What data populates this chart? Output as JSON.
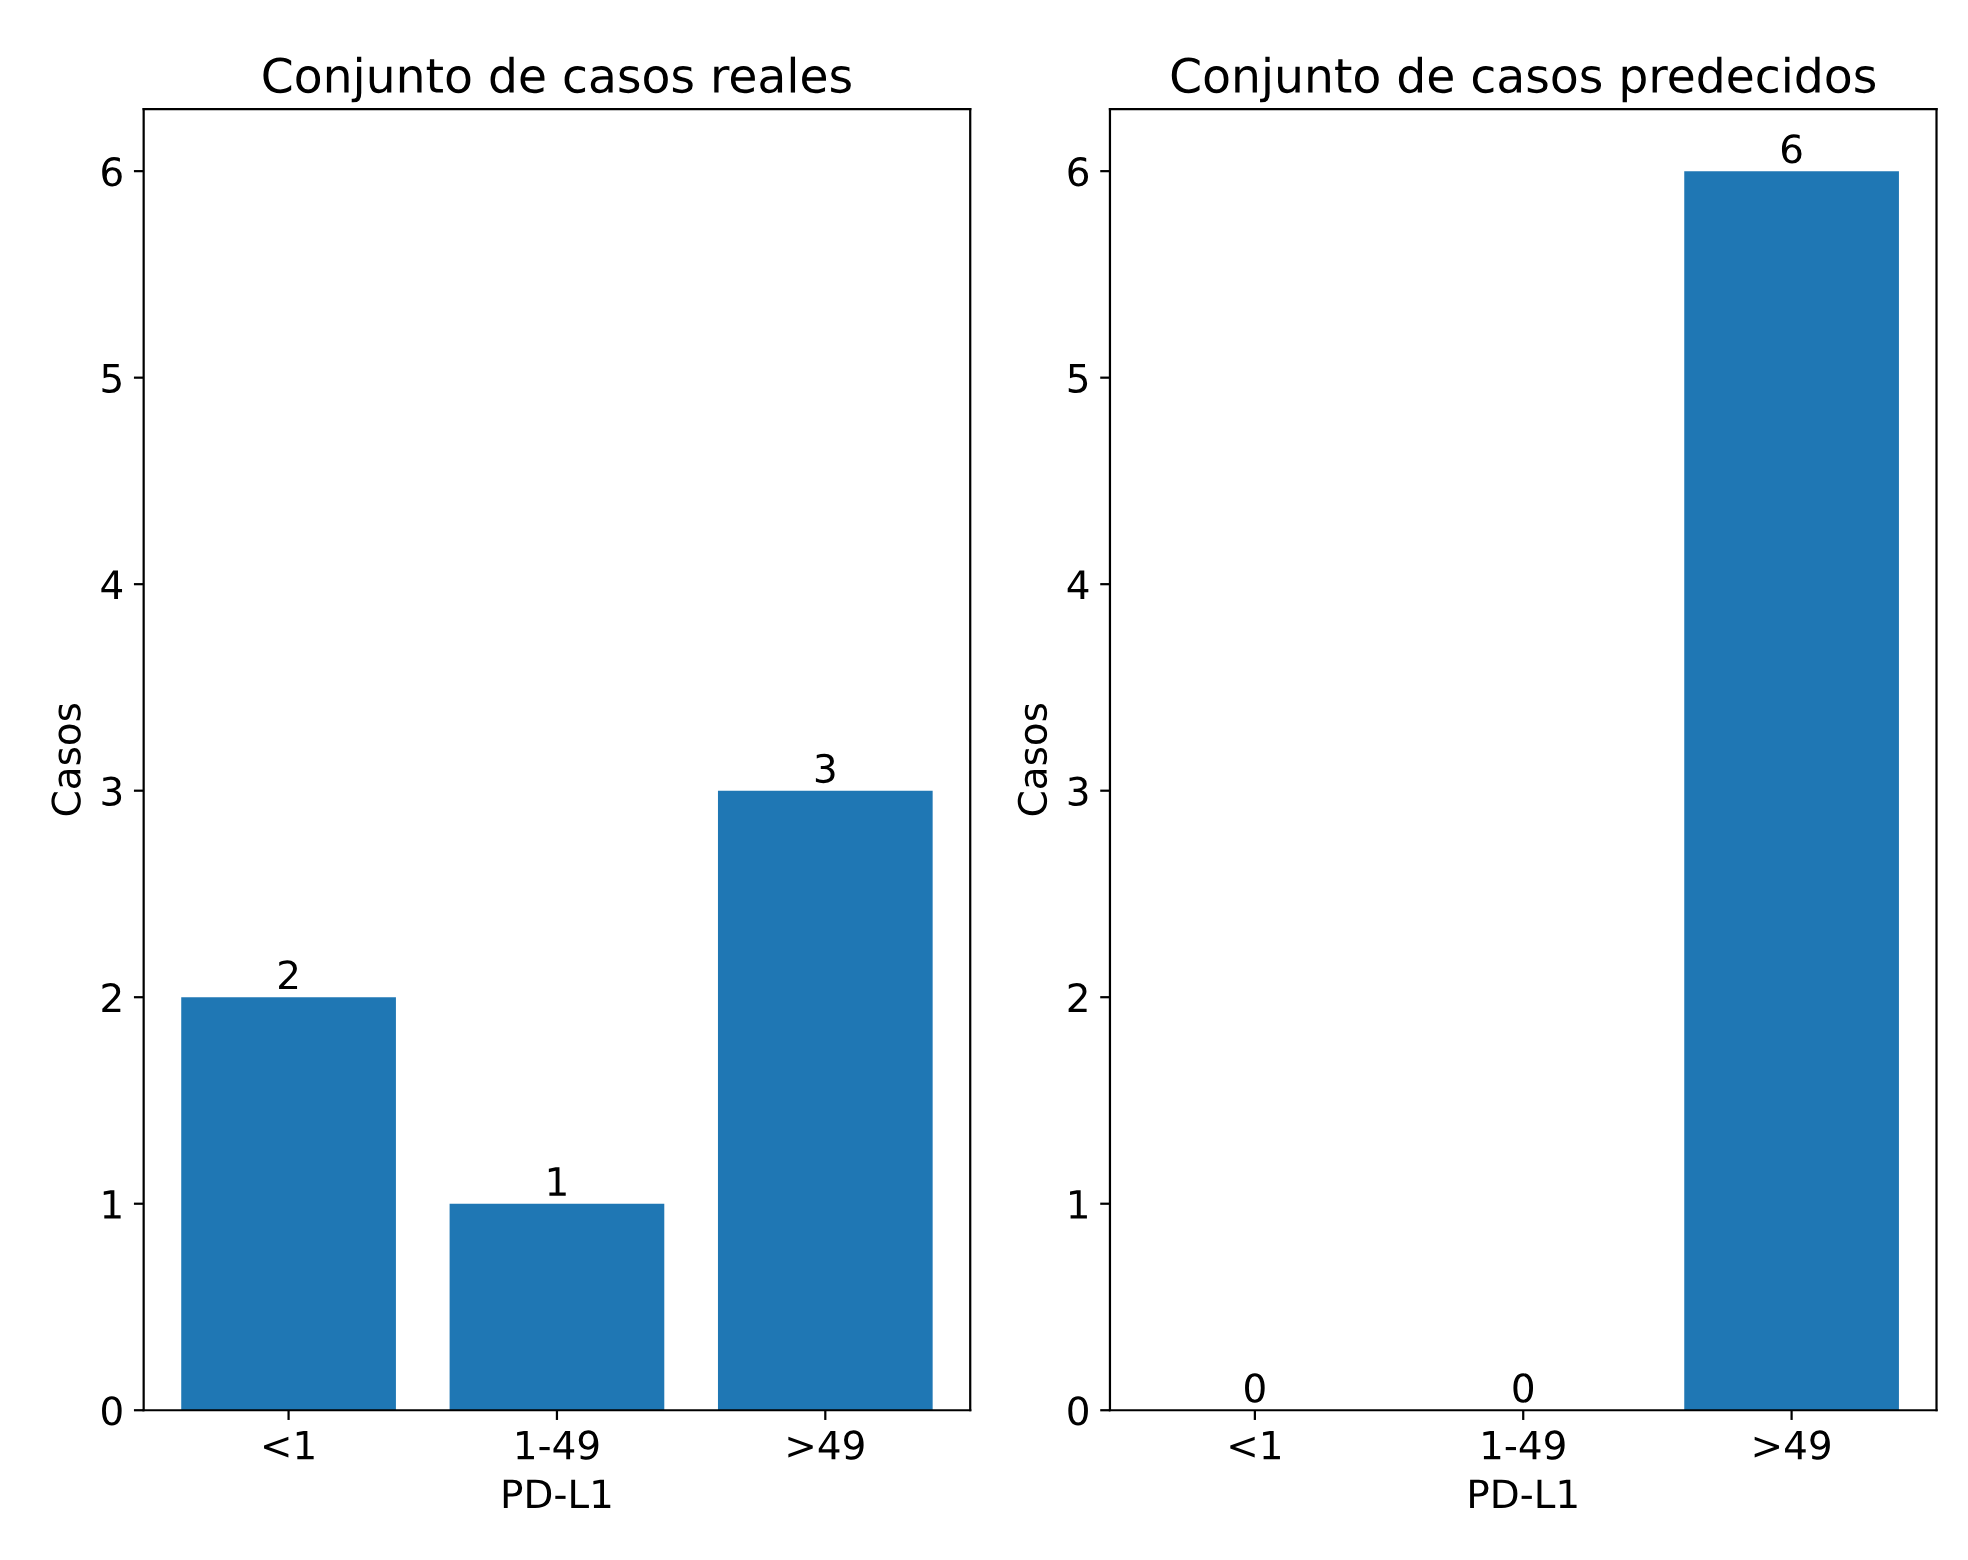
{
  "chart_data": [
    {
      "type": "bar",
      "title": "Conjunto de casos reales",
      "xlabel": "PD-L1",
      "ylabel": "Casos",
      "categories": [
        "<1",
        "1-49",
        ">49"
      ],
      "values": [
        2,
        1,
        3
      ],
      "color": "#1f77b4",
      "ylim": [
        0,
        6.3
      ],
      "yticks": [
        0,
        1,
        2,
        3,
        4,
        5,
        6
      ],
      "data_labels": true,
      "grid": false,
      "legend": false
    },
    {
      "type": "bar",
      "title": "Conjunto de casos predecidos",
      "xlabel": "PD-L1",
      "ylabel": "Casos",
      "categories": [
        "<1",
        "1-49",
        ">49"
      ],
      "values": [
        0,
        0,
        6
      ],
      "color": "#1f77b4",
      "ylim": [
        0,
        6.3
      ],
      "yticks": [
        0,
        1,
        2,
        3,
        4,
        5,
        6
      ],
      "data_labels": true,
      "grid": false,
      "legend": false
    }
  ]
}
